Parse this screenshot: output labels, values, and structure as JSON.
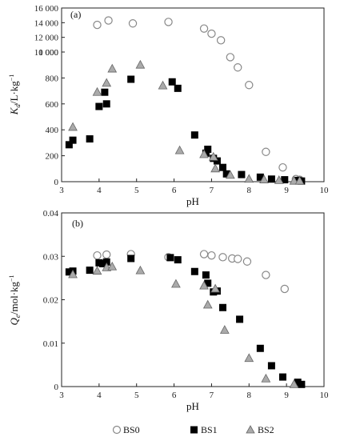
{
  "legend": [
    {
      "name": "BS0",
      "marker": "open-circle"
    },
    {
      "name": "BS1",
      "marker": "filled-square"
    },
    {
      "name": "BS2",
      "marker": "gray-triangle"
    }
  ],
  "colors": {
    "axis": "#222222",
    "BS0_stroke": "#888888",
    "BS1_fill": "#000000",
    "BS2_fill": "#aaaaaa",
    "BS2_stroke": "#666666"
  },
  "chart_data": [
    {
      "type": "scatter",
      "panel_label": "(a)",
      "xlabel": "pH",
      "ylabel": "K_d/L·kg⁻¹",
      "ylabel_main": "K",
      "ylabel_sub": "d",
      "ylabel_rest": "/L·kg",
      "ylabel_sup": "−1",
      "broken_y_axis": true,
      "xlim": [
        3,
        10
      ],
      "x_ticks": [
        "3",
        "4",
        "5",
        "6",
        "7",
        "8",
        "9",
        "10"
      ],
      "y_ticks": [
        "0",
        "200",
        "400",
        "600",
        "800",
        "1 000",
        "10 000",
        "12 000",
        "14 000",
        "16 000"
      ],
      "note": "Lower y segment 0–1 000 (step 200); upper segment 10 000–16 000 (step 2 000)",
      "series": [
        {
          "name": "BS0",
          "points": [
            [
              3.95,
              13700
            ],
            [
              4.25,
              14300
            ],
            [
              4.9,
              13900
            ],
            [
              5.85,
              14100
            ],
            [
              6.8,
              13200
            ],
            [
              7.0,
              12500
            ],
            [
              7.25,
              11600
            ],
            [
              7.5,
              9300
            ],
            [
              7.7,
              7900
            ],
            [
              8.0,
              5500
            ],
            [
              8.45,
              230
            ],
            [
              8.9,
              110
            ],
            [
              9.25,
              20
            ],
            [
              9.35,
              15
            ]
          ]
        },
        {
          "name": "BS1",
          "points": [
            [
              3.2,
              285
            ],
            [
              3.3,
              320
            ],
            [
              3.75,
              330
            ],
            [
              4.0,
              580
            ],
            [
              4.15,
              690
            ],
            [
              4.2,
              600
            ],
            [
              4.85,
              790
            ],
            [
              5.95,
              770
            ],
            [
              6.1,
              720
            ],
            [
              6.55,
              360
            ],
            [
              6.85,
              220
            ],
            [
              6.9,
              250
            ],
            [
              7.05,
              180
            ],
            [
              7.15,
              160
            ],
            [
              7.3,
              110
            ],
            [
              7.4,
              60
            ],
            [
              7.8,
              55
            ],
            [
              8.3,
              35
            ],
            [
              8.6,
              20
            ],
            [
              8.95,
              15
            ],
            [
              9.3,
              10
            ],
            [
              9.4,
              5
            ]
          ]
        },
        {
          "name": "BS2",
          "points": [
            [
              3.3,
              420
            ],
            [
              3.95,
              690
            ],
            [
              4.2,
              760
            ],
            [
              4.35,
              870
            ],
            [
              5.1,
              900
            ],
            [
              5.7,
              740
            ],
            [
              6.15,
              240
            ],
            [
              6.8,
              210
            ],
            [
              7.05,
              190
            ],
            [
              7.1,
              100
            ],
            [
              7.5,
              50
            ],
            [
              8.0,
              20
            ],
            [
              8.4,
              15
            ],
            [
              8.8,
              10
            ],
            [
              9.2,
              5
            ],
            [
              9.35,
              5
            ]
          ]
        }
      ]
    },
    {
      "type": "scatter",
      "panel_label": "(b)",
      "xlabel": "pH",
      "ylabel": "Q_e/mol·kg⁻¹",
      "ylabel_main": "Q",
      "ylabel_sub": "e",
      "ylabel_rest": "/mol·kg",
      "ylabel_sup": "−1",
      "xlim": [
        3,
        10
      ],
      "ylim": [
        0,
        0.04
      ],
      "x_ticks": [
        "3",
        "4",
        "5",
        "6",
        "7",
        "8",
        "9",
        "10"
      ],
      "y_ticks": [
        "0",
        "0.01",
        "0.02",
        "0.03",
        "0.04"
      ],
      "series": [
        {
          "name": "BS0",
          "points": [
            [
              3.95,
              0.0302
            ],
            [
              4.2,
              0.0304
            ],
            [
              4.85,
              0.0305
            ],
            [
              5.85,
              0.0298
            ],
            [
              6.8,
              0.0305
            ],
            [
              7.0,
              0.0302
            ],
            [
              7.3,
              0.0298
            ],
            [
              7.55,
              0.0295
            ],
            [
              7.7,
              0.0294
            ],
            [
              7.95,
              0.0288
            ],
            [
              8.45,
              0.0257
            ],
            [
              8.95,
              0.0225
            ]
          ]
        },
        {
          "name": "BS1",
          "points": [
            [
              3.2,
              0.0264
            ],
            [
              3.3,
              0.0266
            ],
            [
              3.75,
              0.0268
            ],
            [
              4.0,
              0.0285
            ],
            [
              4.1,
              0.0283
            ],
            [
              4.2,
              0.0287
            ],
            [
              4.85,
              0.0295
            ],
            [
              5.9,
              0.0297
            ],
            [
              6.1,
              0.0292
            ],
            [
              6.55,
              0.0265
            ],
            [
              6.85,
              0.0257
            ],
            [
              6.9,
              0.0238
            ],
            [
              7.05,
              0.0218
            ],
            [
              7.15,
              0.022
            ],
            [
              7.3,
              0.0182
            ],
            [
              7.75,
              0.0155
            ],
            [
              8.3,
              0.0088
            ],
            [
              8.6,
              0.0048
            ],
            [
              8.9,
              0.0022
            ],
            [
              9.3,
              0.001
            ],
            [
              9.4,
              0.0005
            ]
          ]
        },
        {
          "name": "BS2",
          "points": [
            [
              3.3,
              0.0258
            ],
            [
              3.95,
              0.0266
            ],
            [
              4.2,
              0.0274
            ],
            [
              4.35,
              0.0276
            ],
            [
              5.1,
              0.0267
            ],
            [
              6.05,
              0.0236
            ],
            [
              6.8,
              0.0232
            ],
            [
              6.9,
              0.0188
            ],
            [
              7.1,
              0.0225
            ],
            [
              7.35,
              0.013
            ],
            [
              8.0,
              0.0065
            ],
            [
              8.45,
              0.0018
            ],
            [
              9.2,
              0.0005
            ]
          ]
        }
      ]
    }
  ]
}
